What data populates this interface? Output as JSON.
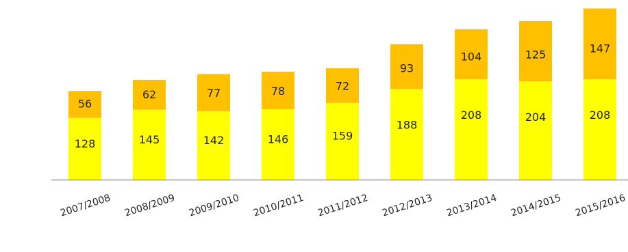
{
  "chart_data": {
    "type": "bar",
    "stacked": true,
    "categories": [
      "2007/2008",
      "2008/2009",
      "2009/2010",
      "2010/2011",
      "2011/2012",
      "2012/2013",
      "2013/2014",
      "2014/2015",
      "2015/2016"
    ],
    "series": [
      {
        "values": [
          128,
          145,
          142,
          146,
          159,
          188,
          208,
          204,
          208
        ],
        "color": "#ffff00"
      },
      {
        "values": [
          56,
          62,
          77,
          78,
          72,
          93,
          104,
          125,
          147
        ],
        "color": "#ffc000"
      }
    ],
    "ylim": [
      0,
      360
    ],
    "grid": false,
    "axis_color": "#999999",
    "title": "",
    "xlabel": "",
    "ylabel": ""
  }
}
